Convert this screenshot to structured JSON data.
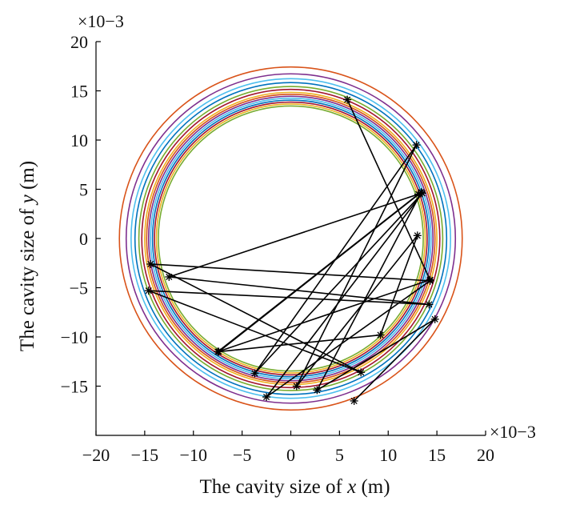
{
  "chart_data": {
    "type": "scatter",
    "title": "",
    "xlabel": {
      "prefix": "The cavity size of ",
      "var": "x",
      "unit": " (m)"
    },
    "ylabel": {
      "prefix": "The cavity size of ",
      "var": "y",
      "unit": " (m)"
    },
    "x_multiplier": "×10−3",
    "y_multiplier": "×10−3",
    "xlim": [
      -20,
      20
    ],
    "ylim": [
      -20,
      20
    ],
    "xticks": [
      -20,
      -15,
      -10,
      -5,
      0,
      5,
      10,
      15,
      20
    ],
    "yticks": [
      -15,
      -10,
      -5,
      0,
      5,
      10,
      15,
      20
    ],
    "xtick_labels": [
      "−20",
      "−15",
      "−10",
      "−5",
      "0",
      "5",
      "10",
      "15",
      "20"
    ],
    "ytick_labels": [
      "−15",
      "−10",
      "−5",
      "0",
      "5",
      "10",
      "15",
      "20"
    ],
    "grid": false,
    "circles": [
      {
        "radius": 17.6,
        "color": "#d95319"
      },
      {
        "radius": 16.9,
        "color": "#7e2f8e"
      },
      {
        "radius": 16.4,
        "color": "#4dbeee"
      },
      {
        "radius": 16.0,
        "color": "#0072bd"
      },
      {
        "radius": 15.6,
        "color": "#77ac30"
      },
      {
        "radius": 15.3,
        "color": "#a2142f"
      },
      {
        "radius": 15.0,
        "color": "#edb120"
      },
      {
        "radius": 14.8,
        "color": "#d95319"
      },
      {
        "radius": 14.6,
        "color": "#7e2f8e"
      },
      {
        "radius": 14.4,
        "color": "#4dbeee"
      },
      {
        "radius": 14.2,
        "color": "#0072bd"
      },
      {
        "radius": 14.0,
        "color": "#a2142f"
      },
      {
        "radius": 13.8,
        "color": "#edb120"
      },
      {
        "radius": 13.6,
        "color": "#77ac30"
      }
    ],
    "path": {
      "color": "#000000",
      "marker": "asterisk",
      "points": [
        [
          5.8,
          14.1
        ],
        [
          14.3,
          -4.2
        ],
        [
          -7.5,
          -11.5
        ],
        [
          13.1,
          4.5
        ],
        [
          -12.5,
          -3.9
        ],
        [
          14.2,
          -6.7
        ],
        [
          -14.6,
          -5.3
        ],
        [
          7.2,
          -13.6
        ],
        [
          -14.4,
          -2.6
        ],
        [
          14.3,
          -4.3
        ],
        [
          -2.5,
          -16.1
        ],
        [
          13.5,
          4.6
        ],
        [
          -3.7,
          -13.7
        ],
        [
          12.9,
          9.5
        ],
        [
          0.6,
          -15.0
        ],
        [
          13.0,
          0.3
        ],
        [
          9.2,
          -9.8
        ],
        [
          -7.4,
          -11.5
        ],
        [
          13.4,
          4.7
        ],
        [
          2.7,
          -15.4
        ],
        [
          14.8,
          -8.2
        ],
        [
          6.5,
          -16.5
        ]
      ]
    }
  }
}
